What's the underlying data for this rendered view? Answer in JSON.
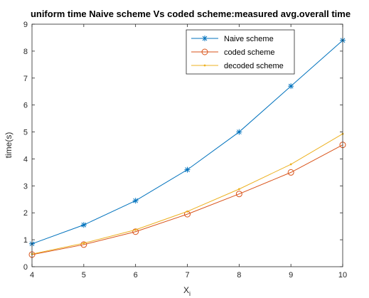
{
  "chart_data": {
    "type": "line",
    "title": "uniform time Naive scheme Vs coded scheme:measured avg.overall time",
    "xlabel": "X",
    "xlabel_subscript": "i",
    "ylabel": "time(s)",
    "xlim": [
      4,
      10
    ],
    "ylim": [
      0,
      9
    ],
    "xticks": [
      4,
      5,
      6,
      7,
      8,
      9,
      10
    ],
    "yticks": [
      0,
      1,
      2,
      3,
      4,
      5,
      6,
      7,
      8,
      9
    ],
    "grid": false,
    "legend_position": "top-right",
    "x": [
      4,
      5,
      6,
      7,
      8,
      9,
      10
    ],
    "series": [
      {
        "name": "Naive scheme",
        "color": "#0072BD",
        "marker": "asterisk",
        "values": [
          0.85,
          1.55,
          2.45,
          3.6,
          5.0,
          6.7,
          8.4
        ]
      },
      {
        "name": "coded scheme",
        "color": "#D95319",
        "marker": "circle",
        "values": [
          0.45,
          0.82,
          1.3,
          1.95,
          2.7,
          3.5,
          4.52
        ]
      },
      {
        "name": "decoded scheme",
        "color": "#EDB120",
        "marker": "point",
        "values": [
          0.47,
          0.87,
          1.37,
          2.05,
          2.88,
          3.8,
          4.93
        ]
      }
    ]
  }
}
